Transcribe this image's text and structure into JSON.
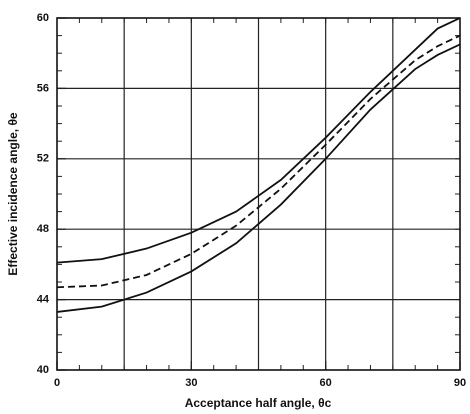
{
  "chart_data": {
    "type": "line",
    "xlabel": "Acceptance half angle, θc",
    "ylabel": "Effective incidence angle, θe",
    "x": [
      0,
      10,
      20,
      30,
      40,
      50,
      60,
      70,
      80,
      85,
      90
    ],
    "series": [
      {
        "color": "#111111",
        "dash": false,
        "values": [
          46.1,
          46.3,
          46.9,
          47.8,
          49.0,
          50.8,
          53.2,
          55.8,
          58.2,
          59.4,
          60.0
        ]
      },
      {
        "color": "#111111",
        "dash": true,
        "values": [
          44.7,
          44.8,
          45.4,
          46.6,
          48.2,
          50.3,
          52.8,
          55.4,
          57.6,
          58.4,
          59.0
        ]
      },
      {
        "color": "#111111",
        "dash": false,
        "values": [
          43.3,
          43.6,
          44.4,
          45.6,
          47.2,
          49.4,
          52.0,
          54.8,
          57.1,
          57.9,
          58.5
        ]
      }
    ],
    "xlim": [
      0,
      90
    ],
    "xticks": [
      0,
      30,
      60,
      90
    ],
    "ylim": [
      40,
      60
    ],
    "yticks": [
      40,
      44,
      48,
      52,
      56,
      60
    ],
    "xgrid": [
      15,
      30,
      45,
      60,
      75
    ],
    "ygrid": [
      44,
      48,
      52,
      56
    ],
    "xminor": 5,
    "yminor": 1
  }
}
